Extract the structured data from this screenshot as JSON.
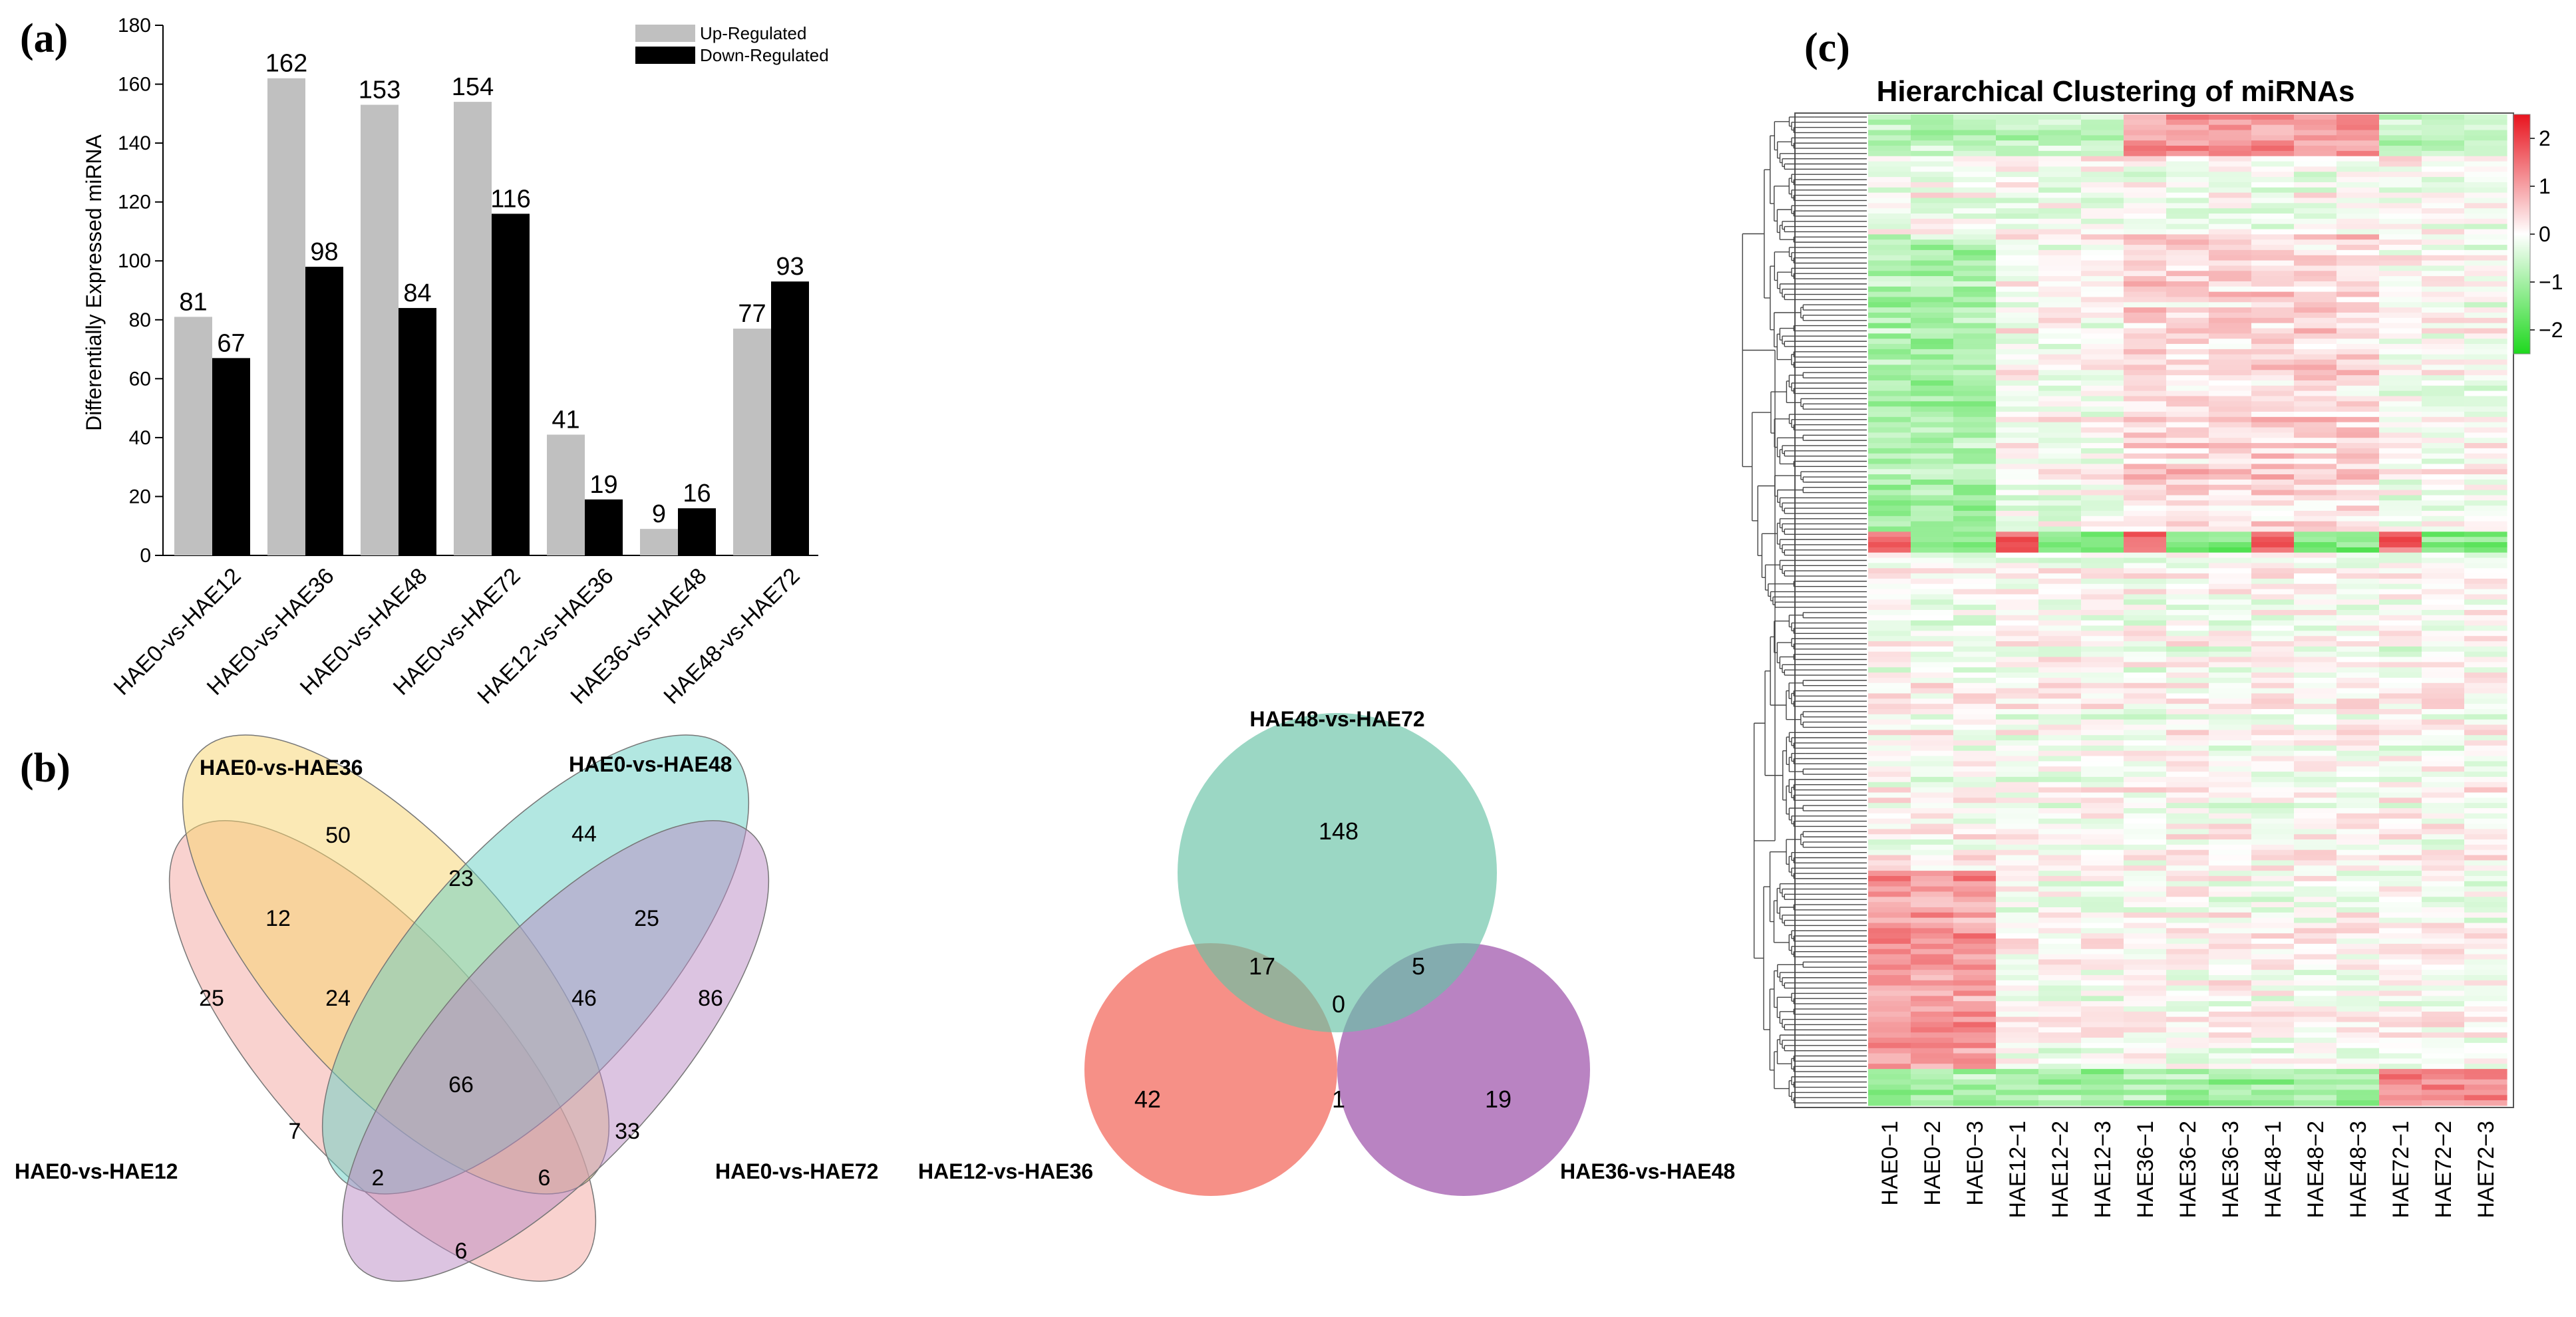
{
  "panels": {
    "a": "(a)",
    "b": "(b)",
    "c": "(c)"
  },
  "chart_data": [
    {
      "type": "bar",
      "panel": "(a)",
      "title": "",
      "ylabel": "Differentially Expressed miRNA",
      "xlabel": "",
      "ylim": [
        0,
        180
      ],
      "yticks": [
        0,
        20,
        40,
        60,
        80,
        100,
        120,
        140,
        160,
        180
      ],
      "categories": [
        "HAE0-vs-HAE12",
        "HAE0-vs-HAE36",
        "HAE0-vs-HAE48",
        "HAE0-vs-HAE72",
        "HAE12-vs-HAE36",
        "HAE36-vs-HAE48",
        "HAE48-vs-HAE72"
      ],
      "series": [
        {
          "name": "Up-Regulated",
          "color": "#c0c0c0",
          "values": [
            81,
            162,
            153,
            154,
            41,
            9,
            77
          ]
        },
        {
          "name": "Down-Regulated",
          "color": "#000000",
          "values": [
            67,
            98,
            84,
            116,
            19,
            16,
            93
          ]
        }
      ],
      "legend_position": "top-right"
    },
    {
      "type": "venn",
      "panel": "(b)",
      "sets": [
        {
          "name": "HAE0-vs-HAE12",
          "color": "#f4a6a0"
        },
        {
          "name": "HAE0-vs-HAE36",
          "color": "#f7d36b"
        },
        {
          "name": "HAE0-vs-HAE48",
          "color": "#66d0c4"
        },
        {
          "name": "HAE0-vs-HAE72",
          "color": "#b98ac4"
        }
      ],
      "regions": [
        {
          "sets": [
            "HAE0-vs-HAE12"
          ],
          "value": 25
        },
        {
          "sets": [
            "HAE0-vs-HAE36"
          ],
          "value": 50
        },
        {
          "sets": [
            "HAE0-vs-HAE48"
          ],
          "value": 44
        },
        {
          "sets": [
            "HAE0-vs-HAE72"
          ],
          "value": 86
        },
        {
          "sets": [
            "HAE0-vs-HAE12",
            "HAE0-vs-HAE36"
          ],
          "value": 12
        },
        {
          "sets": [
            "HAE0-vs-HAE36",
            "HAE0-vs-HAE48"
          ],
          "value": 23
        },
        {
          "sets": [
            "HAE0-vs-HAE48",
            "HAE0-vs-HAE72"
          ],
          "value": 25
        },
        {
          "sets": [
            "HAE0-vs-HAE12",
            "HAE0-vs-HAE36",
            "HAE0-vs-HAE48"
          ],
          "value": 24
        },
        {
          "sets": [
            "HAE0-vs-HAE36",
            "HAE0-vs-HAE48",
            "HAE0-vs-HAE72"
          ],
          "value": 46
        },
        {
          "sets": [
            "HAE0-vs-HAE12",
            "HAE0-vs-HAE36",
            "HAE0-vs-HAE48",
            "HAE0-vs-HAE72"
          ],
          "value": 66
        },
        {
          "sets": [
            "HAE0-vs-HAE12",
            "HAE0-vs-HAE48"
          ],
          "value": 7
        },
        {
          "sets": [
            "HAE0-vs-HAE36",
            "HAE0-vs-HAE72"
          ],
          "value": 33
        },
        {
          "sets": [
            "HAE0-vs-HAE12",
            "HAE0-vs-HAE48",
            "HAE0-vs-HAE72"
          ],
          "value": 2
        },
        {
          "sets": [
            "HAE0-vs-HAE12",
            "HAE0-vs-HAE36",
            "HAE0-vs-HAE72"
          ],
          "value": 6
        },
        {
          "sets": [
            "HAE0-vs-HAE12",
            "HAE0-vs-HAE72"
          ],
          "value": 6
        }
      ]
    },
    {
      "type": "venn",
      "panel": "(b)",
      "sets": [
        {
          "name": "HAE48-vs-HAE72",
          "color": "#66c2a5"
        },
        {
          "name": "HAE12-vs-HAE36",
          "color": "#f36b5f"
        },
        {
          "name": "HAE36-vs-HAE48",
          "color": "#9b4fa8"
        }
      ],
      "regions": [
        {
          "sets": [
            "HAE48-vs-HAE72"
          ],
          "value": 148
        },
        {
          "sets": [
            "HAE12-vs-HAE36"
          ],
          "value": 42
        },
        {
          "sets": [
            "HAE36-vs-HAE48"
          ],
          "value": 19
        },
        {
          "sets": [
            "HAE48-vs-HAE72",
            "HAE12-vs-HAE36"
          ],
          "value": 17
        },
        {
          "sets": [
            "HAE48-vs-HAE72",
            "HAE36-vs-HAE48"
          ],
          "value": 5
        },
        {
          "sets": [
            "HAE12-vs-HAE36",
            "HAE36-vs-HAE48"
          ],
          "value": 1
        },
        {
          "sets": [
            "HAE48-vs-HAE72",
            "HAE12-vs-HAE36",
            "HAE36-vs-HAE48"
          ],
          "value": 0
        }
      ]
    },
    {
      "type": "heatmap",
      "panel": "(c)",
      "title": "Hierarchical Clustering of miRNAs",
      "columns": [
        "HAE0−1",
        "HAE0−2",
        "HAE0−3",
        "HAE12−1",
        "HAE12−2",
        "HAE12−3",
        "HAE36−1",
        "HAE36−2",
        "HAE36−3",
        "HAE48−1",
        "HAE48−2",
        "HAE48−3",
        "HAE72−1",
        "HAE72−2",
        "HAE72−3"
      ],
      "colorbar": {
        "ticks": [
          "2",
          "1",
          "0",
          "−1",
          "−2"
        ],
        "tick_values": [
          2,
          1,
          0,
          -1,
          -2
        ],
        "range": [
          -2.5,
          2.5
        ],
        "low_color": "#1ed81e",
        "mid_color": "#ffffff",
        "high_color": "#e8141e"
      },
      "dendrogram": "rows"
    }
  ]
}
